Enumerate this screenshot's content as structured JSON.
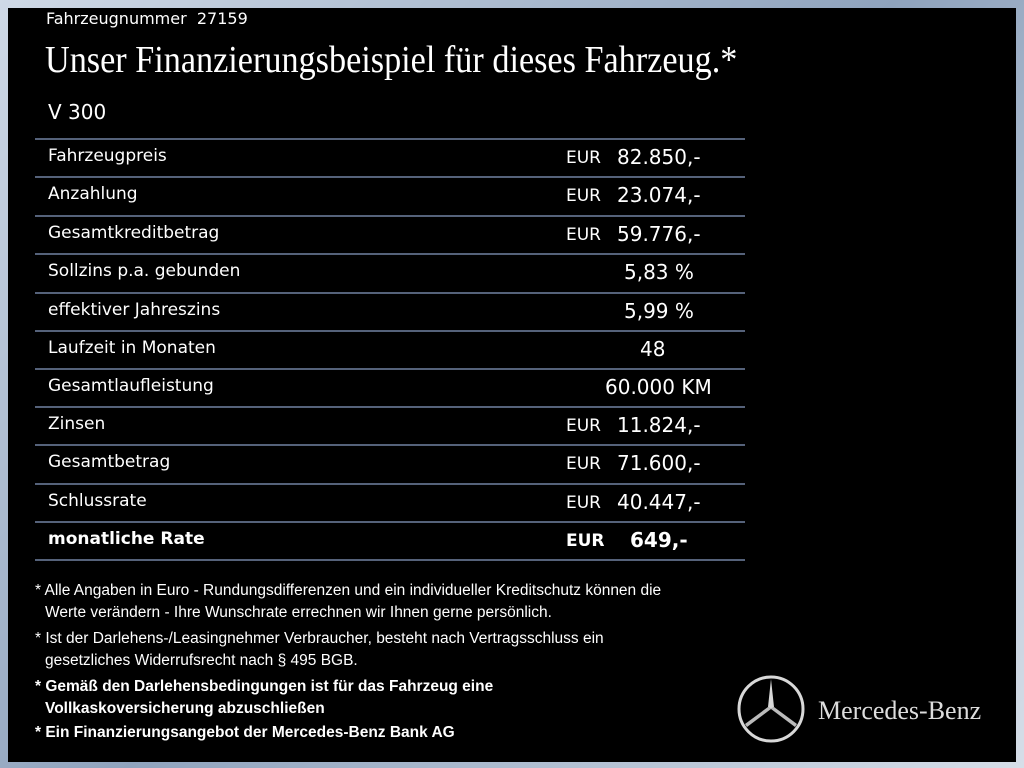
{
  "header": {
    "vehicle_number_label": "Fahrzeugnummer",
    "vehicle_number": "27159",
    "title": "Unser Finanzierungsbeispiel für dieses Fahrzeug.*",
    "model": "V 300"
  },
  "table": {
    "rows": [
      {
        "label": "Fahrzeugpreis",
        "currency": "EUR",
        "amount": "82.850,-"
      },
      {
        "label": "Anzahlung",
        "currency": "EUR",
        "amount": "23.074,-"
      },
      {
        "label": "Gesamtkreditbetrag",
        "currency": "EUR",
        "amount": "59.776,-"
      },
      {
        "label": "Sollzins p.a. gebunden",
        "value": "5,83 %"
      },
      {
        "label": "effektiver Jahreszins",
        "value": "5,99 %"
      },
      {
        "label": "Laufzeit in Monaten",
        "value": "48"
      },
      {
        "label": "Gesamtlaufleistung",
        "value": "60.000 KM"
      },
      {
        "label": "Zinsen",
        "currency": "EUR",
        "amount": "11.824,-"
      },
      {
        "label": "Gesamtbetrag",
        "currency": "EUR",
        "amount": "71.600,-"
      },
      {
        "label": "Schlussrate",
        "currency": "EUR",
        "amount": "40.447,-"
      },
      {
        "label": "monatliche Rate",
        "currency": "EUR",
        "amount": "649,-"
      }
    ]
  },
  "footnotes": [
    [
      "* Alle Angaben in Euro - Rundungsdifferenzen und ein individueller Kreditschutz können die",
      "Werte verändern - Ihre Wunschrate errechnen wir Ihnen gerne persönlich."
    ],
    [
      "* Ist der Darlehens-/Leasingnehmer Verbraucher, besteht nach Vertragsschluss ein",
      "gesetzliches Widerrufsrecht nach § 495 BGB."
    ],
    [
      "* Gemäß den Darlehensbedingungen ist für das Fahrzeug eine",
      "Vollkaskoversicherung abzuschließen"
    ],
    [
      "* Ein Finanzierungsangebot der Mercedes-Benz Bank AG"
    ]
  ],
  "brand": "Mercedes-Benz"
}
